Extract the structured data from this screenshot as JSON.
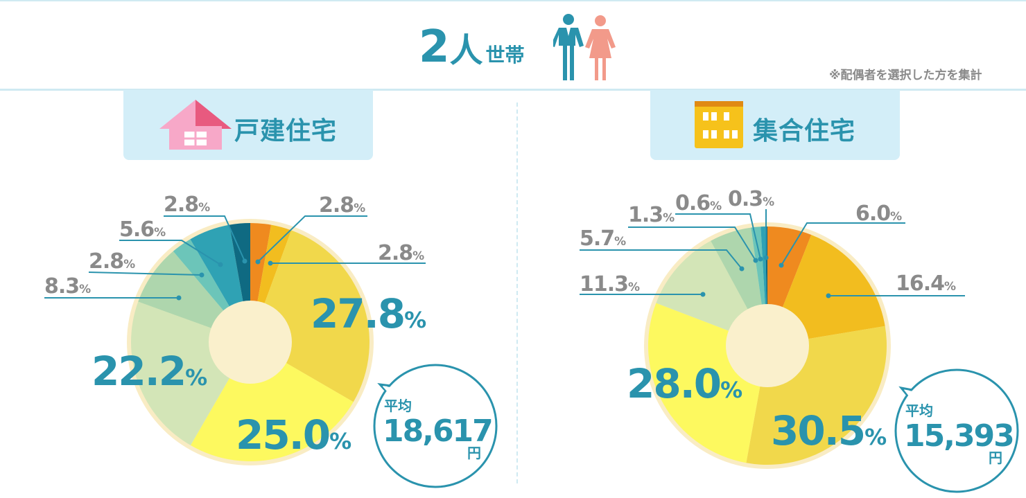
{
  "header": {
    "count": "2",
    "title_main": "人",
    "title_suffix": "世帯",
    "note": "※配偶者を選択した方を集計"
  },
  "colors": {
    "accent": "#2a93ad",
    "gray_text": "#8a8a8a",
    "tab_bg": "#d3eef8"
  },
  "icons": {
    "people": "couple-icon",
    "house": "house-icon",
    "apartment": "apartment-icon"
  },
  "chart_data": [
    {
      "type": "pie",
      "title": "戸建住宅",
      "categories": [
        "",
        "",
        "",
        "",
        "",
        "",
        "",
        "",
        ""
      ],
      "values": [
        2.8,
        2.8,
        27.8,
        25.0,
        22.2,
        8.3,
        2.8,
        5.6,
        2.8
      ],
      "labels": [
        "2.8",
        "2.8",
        "27.8",
        "25.0",
        "22.2",
        "8.3",
        "2.8",
        "5.6",
        "2.8"
      ],
      "unit": "%",
      "colors": [
        "#ef8a1f",
        "#f2bd1f",
        "#f1d84b",
        "#fdf95f",
        "#d3e5b7",
        "#aed6ad",
        "#6cc5b9",
        "#2fa2b4",
        "#0f6a82"
      ],
      "average_label": "平均",
      "average_value": "18,617",
      "average_unit": "円"
    },
    {
      "type": "pie",
      "title": "集合住宅",
      "categories": [
        "",
        "",
        "",
        "",
        "",
        "",
        "",
        "",
        ""
      ],
      "values": [
        6.0,
        16.4,
        30.5,
        28.0,
        11.3,
        5.7,
        1.3,
        0.6,
        0.3
      ],
      "labels": [
        "6.0",
        "16.4",
        "30.5",
        "28.0",
        "11.3",
        "5.7",
        "1.3",
        "0.6",
        "0.3"
      ],
      "unit": "%",
      "colors": [
        "#ef8a1f",
        "#f2bd1f",
        "#f1d84b",
        "#fdf95f",
        "#d3e5b7",
        "#aed6ad",
        "#6cc5b9",
        "#2fa2b4",
        "#0f6a82"
      ],
      "average_label": "平均",
      "average_value": "15,393",
      "average_unit": "円"
    }
  ]
}
